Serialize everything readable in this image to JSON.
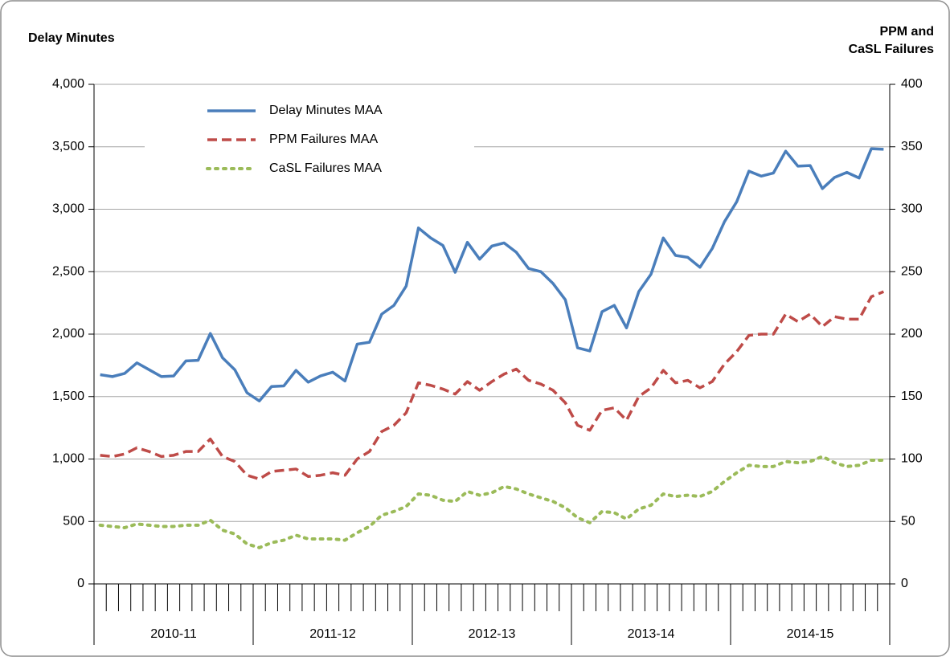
{
  "chart_data": {
    "type": "line",
    "ylabel": "Delay Minutes",
    "y2label": [
      "PPM and",
      "CaSL Failures"
    ],
    "categories": [
      null,
      null,
      null,
      null,
      null,
      null,
      null,
      null,
      null,
      null,
      null,
      null,
      null,
      null,
      null,
      null,
      null,
      null,
      null,
      null,
      null,
      null,
      null,
      null,
      null,
      null,
      null,
      null,
      null,
      null,
      null,
      null,
      null,
      null,
      null,
      null,
      null,
      null,
      null,
      null,
      null,
      null,
      null,
      null,
      null,
      null,
      null,
      null,
      null,
      null,
      null,
      null,
      null,
      null,
      null,
      null,
      null,
      null,
      null,
      null,
      null,
      null,
      null,
      null,
      null
    ],
    "groups": [
      "2010-11",
      "2011-12",
      "2012-13",
      "2013-14",
      "2014-15"
    ],
    "ylim": [
      0,
      4000
    ],
    "yticks": [
      0,
      500,
      {
        "value": 1000,
        "label": "1,000"
      },
      {
        "value": 1500,
        "label": "1,500"
      },
      {
        "value": 2000,
        "label": "2,000"
      },
      {
        "value": 2500,
        "label": "2,500"
      },
      {
        "value": 3000,
        "label": "3,000"
      },
      {
        "value": 3500,
        "label": "3,500"
      },
      {
        "value": 4000,
        "label": "4,000"
      }
    ],
    "y2lim": [
      0,
      400
    ],
    "y2ticks": [
      0,
      50,
      100,
      150,
      200,
      250,
      300,
      350,
      400
    ],
    "grid": true,
    "series": [
      {
        "name": "Delay Minutes MAA",
        "color": "#4a7ebb",
        "style": "solid",
        "values": [
          1675,
          1660,
          1685,
          1770,
          1715,
          1660,
          1665,
          1785,
          1790,
          2005,
          1810,
          1715,
          1530,
          1465,
          1580,
          1585,
          1710,
          1615,
          1665,
          1695,
          1625,
          1920,
          1935,
          2160,
          2230,
          2385,
          2850,
          2770,
          2710,
          2495,
          2735,
          2600,
          2705,
          2730,
          2655,
          2525,
          2500,
          2405,
          2275,
          1890,
          1865,
          2180,
          2230,
          2050,
          2340,
          2480,
          2770,
          2630,
          2615,
          2535,
          2685,
          2900,
          3060,
          3305,
          3265,
          3290,
          3465,
          3345,
          3350,
          3165,
          3255,
          3295,
          3250,
          3485,
          3480
        ]
      },
      {
        "name": "PPM Failures MAA",
        "color": "#be4b48",
        "style": "dashed",
        "axis": "y2",
        "values": [
          103,
          102,
          104,
          109,
          106,
          102,
          103,
          106,
          106,
          116,
          102,
          98,
          87,
          84,
          90,
          91,
          92,
          86,
          87,
          89,
          87,
          100,
          106,
          122,
          127,
          137,
          161,
          159,
          156,
          152,
          162,
          155,
          162,
          168,
          172,
          163,
          160,
          155,
          145,
          127,
          123,
          139,
          141,
          131,
          150,
          157,
          171,
          161,
          163,
          157,
          162,
          176,
          186,
          199,
          200,
          200,
          216,
          210,
          216,
          206,
          214,
          212,
          212,
          230,
          234
        ]
      },
      {
        "name": "CaSL Failures MAA",
        "color": "#9bbb59",
        "style": "dotted",
        "axis": "y2",
        "values": [
          47,
          46,
          45,
          48,
          47,
          46,
          46,
          47,
          47,
          51,
          43,
          40,
          32,
          29,
          33,
          35,
          39,
          36,
          36,
          36,
          35,
          41,
          46,
          55,
          58,
          62,
          72,
          71,
          67,
          66,
          74,
          71,
          73,
          78,
          76,
          72,
          69,
          66,
          61,
          53,
          49,
          58,
          57,
          52,
          60,
          63,
          72,
          70,
          71,
          70,
          74,
          82,
          89,
          95,
          94,
          94,
          98,
          97,
          98,
          102,
          97,
          94,
          95,
          99,
          99
        ]
      }
    ]
  }
}
